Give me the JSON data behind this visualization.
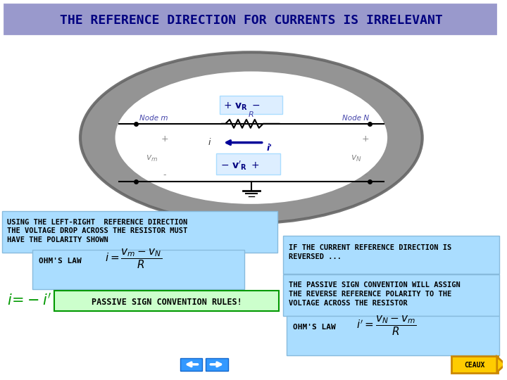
{
  "title": "THE REFERENCE DIRECTION FOR CURRENTS IS IRRELEVANT",
  "title_box_color": "#9999cc",
  "title_text_color": "#000080",
  "bg_color": "#ffffff",
  "left_text1": "USING THE LEFT-RIGHT  REFERENCE DIRECTION",
  "left_text2": "THE VOLTAGE DROP ACROSS THE RESISTOR MUST",
  "left_text3": "HAVE THE POLARITY SHOWN",
  "left_box_color": "#aaddff",
  "passive_sign_text": "PASSIVE SIGN CONVENTION RULES!",
  "passive_sign_box_color": "#ccffcc",
  "passive_sign_border": "#009900",
  "ieqi_color": "#009900",
  "right_text1": "IF THE CURRENT REFERENCE DIRECTION IS",
  "right_text2": "REVERSED ...",
  "right_box_color": "#aaddff",
  "right_text3": "THE PASSIVE SIGN CONVENTION WILL ASSIGN",
  "right_text4": "THE REVERSE REFERENCE POLARITY TO THE",
  "right_text5": "VOLTAGE ACROSS THE RESISTOR",
  "right_box2_color": "#aaddff",
  "ohm_law2_box_color": "#aaddff",
  "nav_color": "#3399ff",
  "ceaux_color": "#ffcc00",
  "ceaux_border": "#cc8800"
}
